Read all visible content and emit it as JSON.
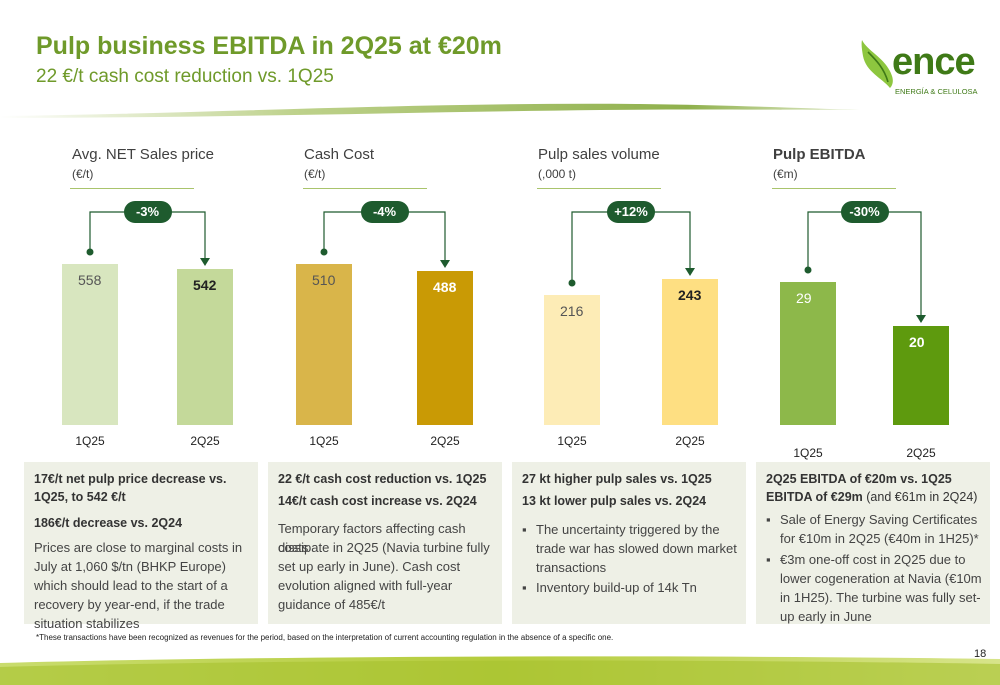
{
  "header": {
    "title": "Pulp business EBITDA in 2Q25 at €20m",
    "subtitle": "22 €/t cash cost reduction vs. 1Q25"
  },
  "logo": {
    "name": "ence",
    "tagline": "ENERGÍA & CELULOSA",
    "icon": "leaf-icon"
  },
  "colors": {
    "title": "#6f9a2a",
    "pill": "#1e5b2e",
    "box": "#eef0e6"
  },
  "panels": [
    {
      "title": "Avg. NET Sales price",
      "unit": "(€/t)",
      "change": "-3%",
      "categories": [
        "1Q25",
        "2Q25"
      ],
      "values": [
        "558",
        "542"
      ],
      "colors": [
        "#d8e6bf",
        "#c4d99a"
      ]
    },
    {
      "title": "Cash Cost",
      "unit": "(€/t)",
      "change": "-4%",
      "categories": [
        "1Q25",
        "2Q25"
      ],
      "values": [
        "510",
        "488"
      ],
      "colors": [
        "#d9b54a",
        "#c99a05"
      ]
    },
    {
      "title": "Pulp sales volume",
      "unit": "(,000 t)",
      "change": "+12%",
      "categories": [
        "1Q25",
        "2Q25"
      ],
      "values": [
        "216",
        "243"
      ],
      "colors": [
        "#fdecb6",
        "#fedf82"
      ]
    },
    {
      "title": "Pulp EBITDA",
      "unit": "(€m)",
      "change": "-30%",
      "categories": [
        "1Q25",
        "2Q25"
      ],
      "values": [
        "29",
        "20"
      ],
      "colors": [
        "#8db84a",
        "#5e9a0e"
      ]
    }
  ],
  "boxes": [
    {
      "headline1": "17€/t net pulp price decrease vs.",
      "headline2": "1Q25, to 542 €/t",
      "headline3": "186€/t decrease vs. 2Q24",
      "body": [
        "Prices are close to marginal costs in",
        "July at 1,060 $/tn (BHKP Europe)",
        "which should lead to the start of a",
        "recovery by year-end, if the trade",
        "situation stabilizes"
      ]
    },
    {
      "headline1": "22 €/t cash cost reduction vs. 1Q25",
      "headline2": "14€/t cash cost increase vs. 2Q24",
      "body": [
        "Temporary factors affecting cash costs",
        "dissipate in 2Q25 (Navia turbine fully",
        "set up early in June). Cash cost",
        "evolution aligned with full-year",
        "guidance of 485€/t"
      ]
    },
    {
      "headline1": "27 kt higher pulp sales vs. 1Q25",
      "headline2": "13 kt lower pulp sales vs. 2Q24",
      "bullets": [
        [
          "The uncertainty triggered by the",
          "trade war has slowed down market",
          "transactions"
        ],
        [
          "Inventory build-up of 14k Tn"
        ]
      ]
    },
    {
      "headline1": "2Q25 EBITDA of €20m vs. 1Q25",
      "headline2": "EBITDA of €29m",
      "headline2_suffix": " (and €61m in 2Q24)",
      "bullets": [
        [
          "Sale of Energy Saving Certificates",
          "for €10m in 2Q25 (€40m in 1H25)*"
        ],
        [
          "€3m one-off cost in 2Q25 due to",
          "lower cogeneration at Navia (€10m",
          "in 1H25). The turbine was fully set-",
          "up early in June"
        ]
      ]
    }
  ],
  "footnote": "*These transactions have been recognized as revenues for the period, based on the interpretation of current accounting regulation in the absence of a specific one.",
  "page_number": "18",
  "chart_data": [
    {
      "type": "bar",
      "title": "Avg. NET Sales price",
      "ylabel": "(€/t)",
      "categories": [
        "1Q25",
        "2Q25"
      ],
      "values": [
        558,
        542
      ],
      "annotation": "-3%"
    },
    {
      "type": "bar",
      "title": "Cash Cost",
      "ylabel": "(€/t)",
      "categories": [
        "1Q25",
        "2Q25"
      ],
      "values": [
        510,
        488
      ],
      "annotation": "-4%"
    },
    {
      "type": "bar",
      "title": "Pulp sales volume",
      "ylabel": "(,000 t)",
      "categories": [
        "1Q25",
        "2Q25"
      ],
      "values": [
        216,
        243
      ],
      "annotation": "+12%"
    },
    {
      "type": "bar",
      "title": "Pulp EBITDA",
      "ylabel": "(€m)",
      "categories": [
        "1Q25",
        "2Q25"
      ],
      "values": [
        29,
        20
      ],
      "annotation": "-30%"
    }
  ]
}
